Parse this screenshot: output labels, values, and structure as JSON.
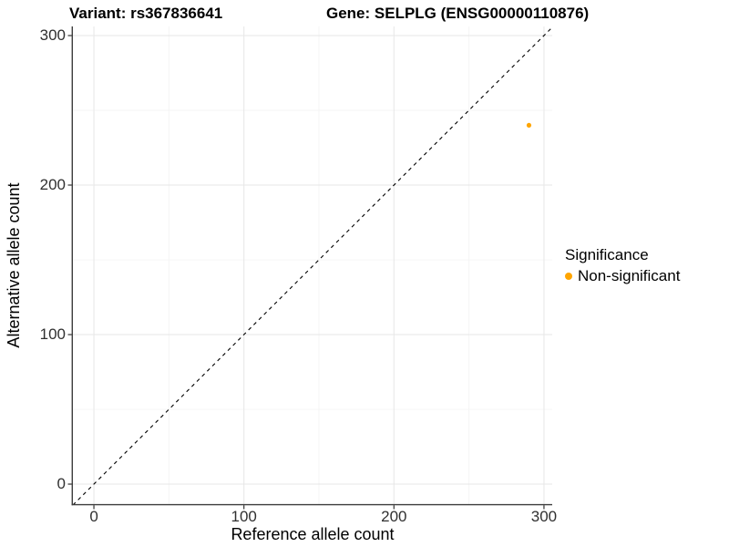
{
  "titles": {
    "variant": "Variant: rs367836641",
    "gene": "Gene: SELPLG (ENSG00000110876)"
  },
  "legend": {
    "title": "Significance",
    "items": [
      {
        "label": "Non-significant",
        "color": "#FFA500"
      }
    ]
  },
  "colors": {
    "background": "#ffffff",
    "major_grid": "#e7e7e7",
    "minor_grid": "#f4f4f4",
    "axis_line": "#3c3c3c",
    "tick_mark": "#333333",
    "tick_text": "#303030",
    "abline": "#000000",
    "point": "#FFA500"
  },
  "chart_data": {
    "type": "scatter",
    "title": "Variant: rs367836641 | Gene: SELPLG (ENSG00000110876)",
    "xlabel": "Reference allele count",
    "ylabel": "Alternative allele count",
    "xlim": [
      -14,
      305.5
    ],
    "ylim": [
      -13.4,
      306.1
    ],
    "x_ticks": [
      0,
      100,
      200,
      300
    ],
    "y_ticks": [
      0,
      100,
      200,
      300
    ],
    "x_minor_ticks": [
      50,
      150,
      250
    ],
    "y_minor_ticks": [
      50,
      150,
      250
    ],
    "grid": true,
    "legend_position": "right",
    "reference_line": {
      "slope": 1,
      "intercept": 0,
      "style": "dashed"
    },
    "series": [
      {
        "name": "Non-significant",
        "color": "#FFA500",
        "points": [
          {
            "x": 290,
            "y": 240
          }
        ]
      }
    ]
  }
}
